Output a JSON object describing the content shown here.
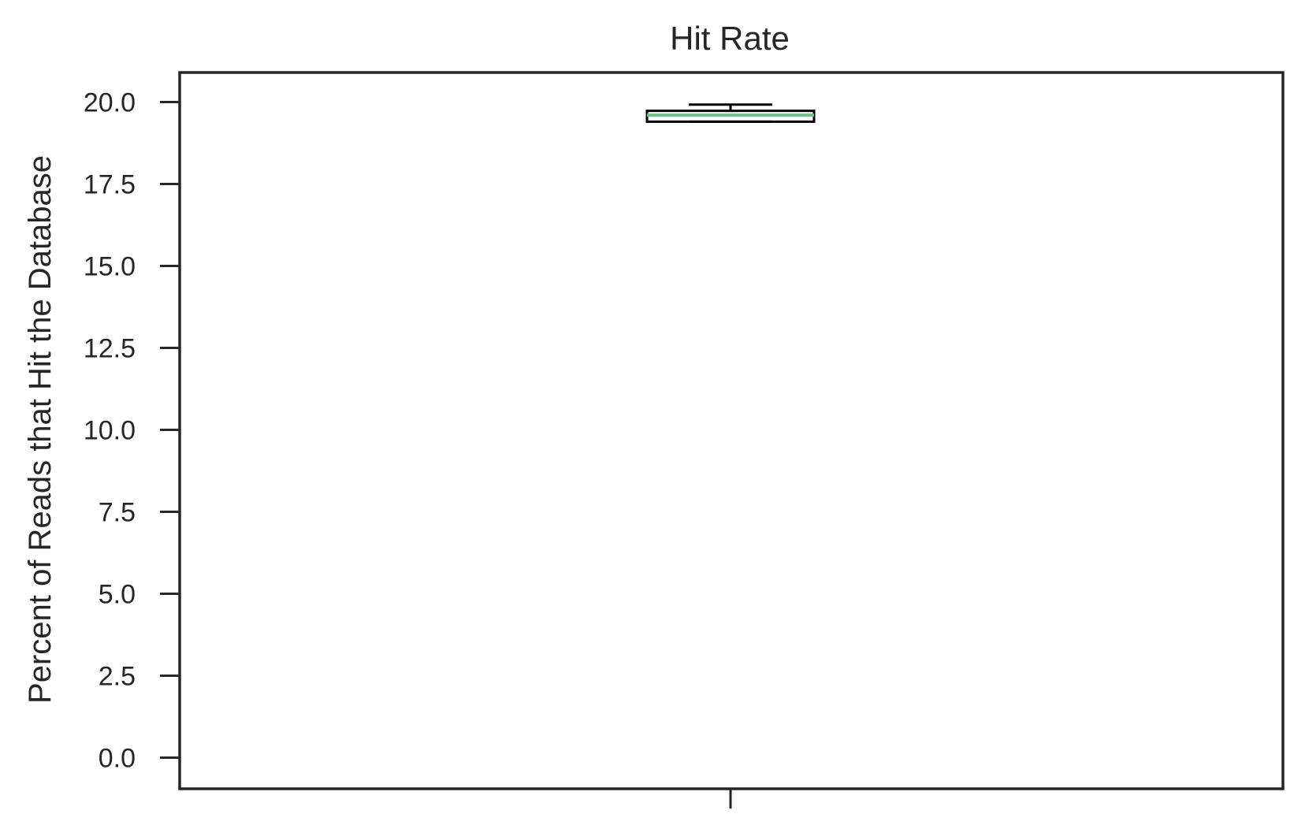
{
  "chart_data": {
    "type": "box",
    "title": "Hit Rate",
    "xlabel": "",
    "ylabel": "Percent of Reads that Hit the Database",
    "ylim": [
      -0.95,
      20.9
    ],
    "yticks": [
      0.0,
      2.5,
      5.0,
      7.5,
      10.0,
      12.5,
      15.0,
      17.5,
      20.0
    ],
    "ytick_labels": [
      "0.0",
      "2.5",
      "5.0",
      "7.5",
      "10.0",
      "12.5",
      "15.0",
      "17.5",
      "20.0"
    ],
    "grid": false,
    "series": [
      {
        "whisker_low": 19.4,
        "q1": 19.4,
        "median": 19.6,
        "q3": 19.73,
        "whisker_high": 19.92
      }
    ],
    "colors": {
      "median": "#6fc28a",
      "box": "#000000",
      "axes": "#262626"
    }
  }
}
